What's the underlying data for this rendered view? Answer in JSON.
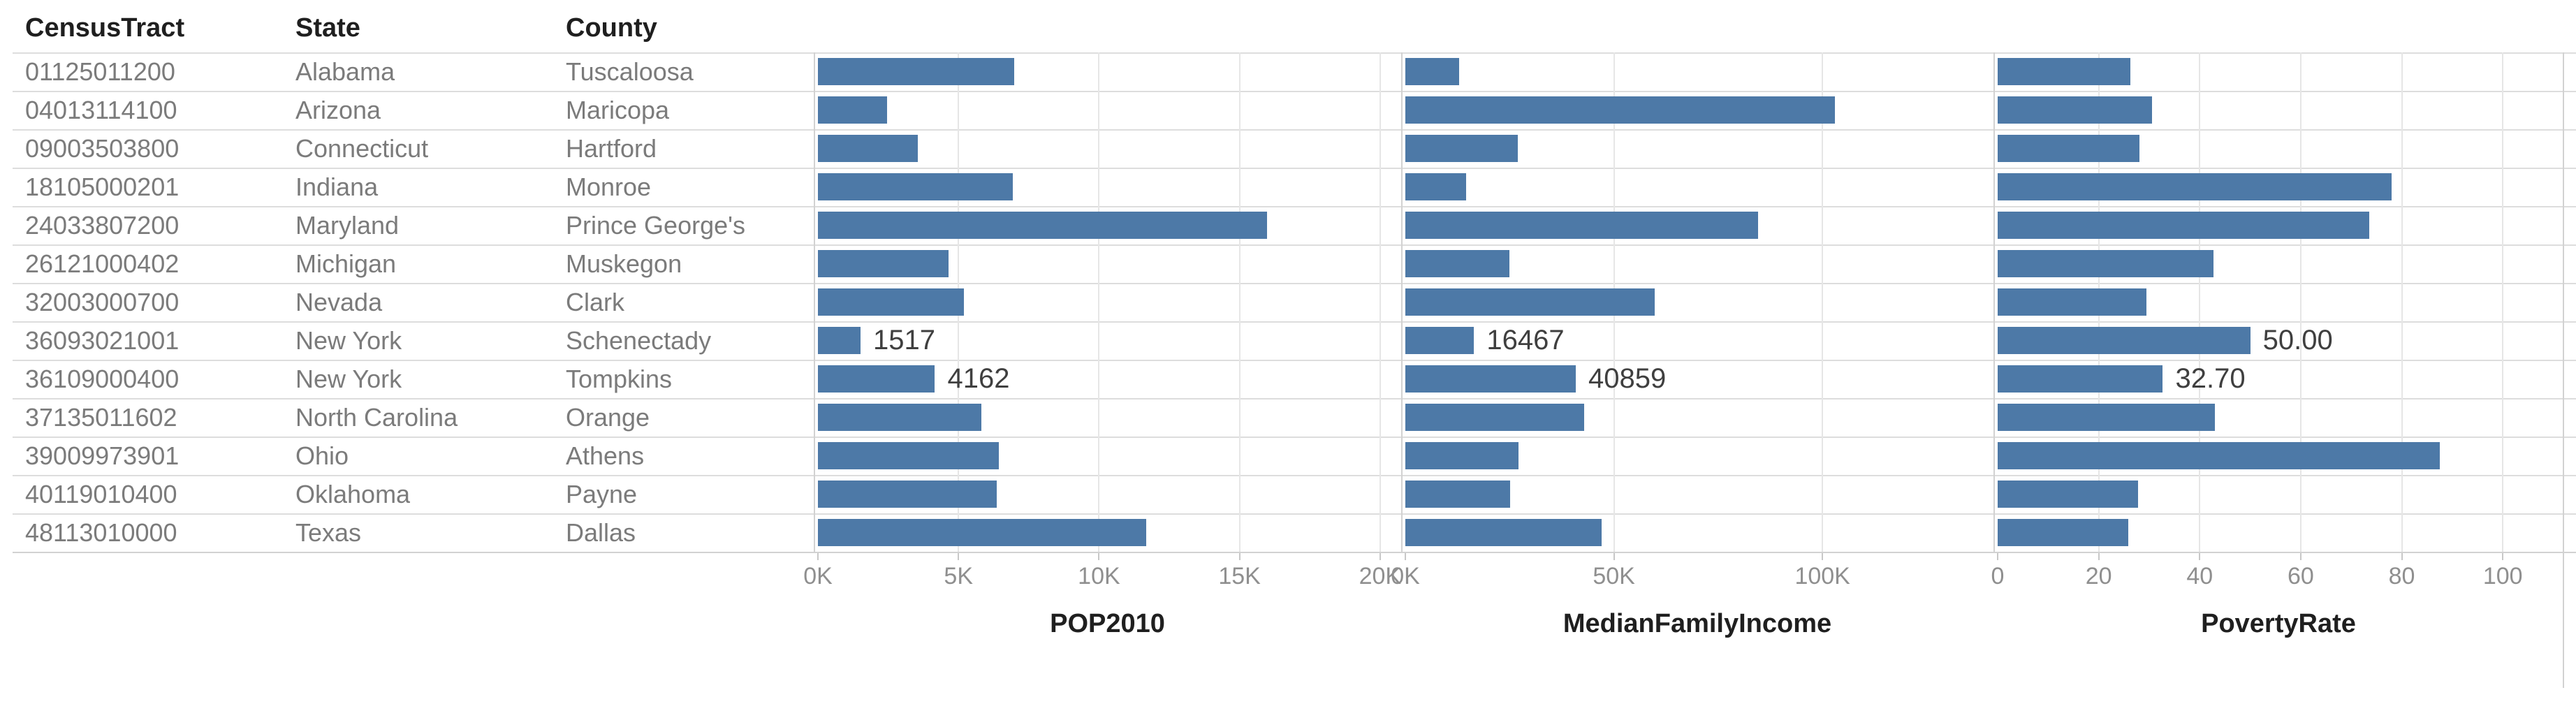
{
  "chart_data": {
    "type": "bar",
    "orientation": "horizontal",
    "grid": true,
    "legend": "none",
    "bar_color": "#4d79a7",
    "row_headers": [
      "CensusTract",
      "State",
      "County"
    ],
    "rows": [
      {
        "tract": "01125011200",
        "state": "Alabama",
        "county": "Tuscaloosa"
      },
      {
        "tract": "04013114100",
        "state": "Arizona",
        "county": "Maricopa"
      },
      {
        "tract": "09003503800",
        "state": "Connecticut",
        "county": "Hartford"
      },
      {
        "tract": "18105000201",
        "state": "Indiana",
        "county": "Monroe"
      },
      {
        "tract": "24033807200",
        "state": "Maryland",
        "county": "Prince George's"
      },
      {
        "tract": "26121000402",
        "state": "Michigan",
        "county": "Muskegon"
      },
      {
        "tract": "32003000700",
        "state": "Nevada",
        "county": "Clark"
      },
      {
        "tract": "36093021001",
        "state": "New York",
        "county": "Schenectady"
      },
      {
        "tract": "36109000400",
        "state": "New York",
        "county": "Tompkins"
      },
      {
        "tract": "37135011602",
        "state": "North Carolina",
        "county": "Orange"
      },
      {
        "tract": "39009973901",
        "state": "Ohio",
        "county": "Athens"
      },
      {
        "tract": "40119010400",
        "state": "Oklahoma",
        "county": "Payne"
      },
      {
        "tract": "48113010000",
        "state": "Texas",
        "county": "Dallas"
      }
    ],
    "series": [
      {
        "name": "POP2010",
        "axis_max": 20750,
        "ticks": [
          {
            "v": 0,
            "label": "0K"
          },
          {
            "v": 5000,
            "label": "5K"
          },
          {
            "v": 10000,
            "label": "10K"
          },
          {
            "v": 15000,
            "label": "15K"
          },
          {
            "v": 20000,
            "label": "20K"
          }
        ],
        "values": [
          6990,
          2460,
          3560,
          6940,
          15970,
          4650,
          5200,
          1517,
          4162,
          5820,
          6440,
          6370,
          11670
        ],
        "annotations": {
          "7": "1517",
          "8": "4162"
        }
      },
      {
        "name": "MedianFamilyIncome",
        "axis_max": 141000,
        "ticks": [
          {
            "v": 0,
            "label": "0K"
          },
          {
            "v": 50000,
            "label": "50K"
          },
          {
            "v": 100000,
            "label": "100K"
          }
        ],
        "values": [
          12960,
          103000,
          26900,
          14600,
          84500,
          25000,
          59800,
          16467,
          40859,
          42900,
          27100,
          25100,
          47100
        ],
        "annotations": {
          "7": "16467",
          "8": "40859"
        }
      },
      {
        "name": "PovertyRate",
        "axis_max": 112,
        "ticks": [
          {
            "v": 0,
            "label": "0"
          },
          {
            "v": 20,
            "label": "20"
          },
          {
            "v": 40,
            "label": "40"
          },
          {
            "v": 60,
            "label": "60"
          },
          {
            "v": 80,
            "label": "80"
          },
          {
            "v": 100,
            "label": "100"
          }
        ],
        "values": [
          26.3,
          30.6,
          28.0,
          78.0,
          73.6,
          42.7,
          29.4,
          50.0,
          32.7,
          43.0,
          87.5,
          27.8,
          25.9
        ],
        "annotations": {
          "7": "50.00",
          "8": "32.70"
        }
      }
    ]
  },
  "colors": {
    "bar": "#4d79a7",
    "header_text": "#1f1f1f",
    "row_text": "#7b7b7b",
    "axis_text": "#8f8f8f",
    "annotation_text": "#3f3f3f",
    "gridline": "#e6e6e6",
    "row_separator": "#dddddd",
    "panel_divider": "#d2d2d2"
  }
}
